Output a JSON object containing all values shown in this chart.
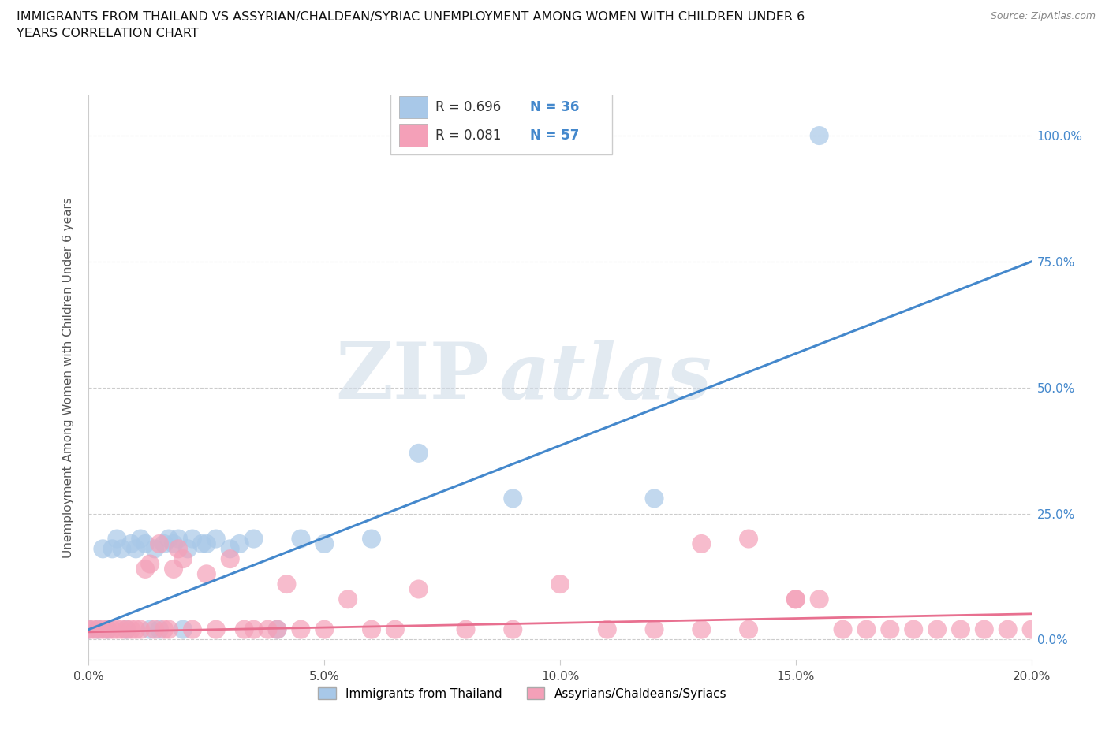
{
  "title": "IMMIGRANTS FROM THAILAND VS ASSYRIAN/CHALDEAN/SYRIAC UNEMPLOYMENT AMONG WOMEN WITH CHILDREN UNDER 6\nYEARS CORRELATION CHART",
  "source": "Source: ZipAtlas.com",
  "ylabel": "Unemployment Among Women with Children Under 6 years",
  "xlabel_ticks": [
    "0.0%",
    "5.0%",
    "10.0%",
    "15.0%",
    "20.0%"
  ],
  "ylabel_ticks_right": [
    "100.0%",
    "75.0%",
    "50.0%",
    "25.0%",
    "0.0%"
  ],
  "ylabel_ticks_vals": [
    1.0,
    0.75,
    0.5,
    0.25,
    0.0
  ],
  "xlim": [
    0.0,
    0.2
  ],
  "ylim": [
    -0.04,
    1.08
  ],
  "watermark_zip": "ZIP",
  "watermark_atlas": "atlas",
  "legend_R1": "R = 0.696",
  "legend_N1": "N = 36",
  "legend_R2": "R = 0.081",
  "legend_N2": "N = 57",
  "color_thailand": "#a8c8e8",
  "color_assyrian": "#f4a0b8",
  "color_line_blue": "#4488cc",
  "color_line_pink": "#e87090",
  "color_tick_blue": "#4488cc",
  "scatter_thailand_x": [
    0.0,
    0.002,
    0.003,
    0.004,
    0.005,
    0.006,
    0.007,
    0.008,
    0.009,
    0.01,
    0.011,
    0.012,
    0.013,
    0.014,
    0.015,
    0.016,
    0.017,
    0.018,
    0.019,
    0.02,
    0.021,
    0.022,
    0.024,
    0.025,
    0.027,
    0.03,
    0.032,
    0.035,
    0.04,
    0.045,
    0.05,
    0.06,
    0.07,
    0.09,
    0.12,
    0.155
  ],
  "scatter_thailand_y": [
    0.02,
    0.02,
    0.18,
    0.02,
    0.18,
    0.2,
    0.18,
    0.02,
    0.19,
    0.18,
    0.2,
    0.19,
    0.02,
    0.18,
    0.02,
    0.19,
    0.2,
    0.19,
    0.2,
    0.02,
    0.18,
    0.2,
    0.19,
    0.19,
    0.2,
    0.18,
    0.19,
    0.2,
    0.02,
    0.2,
    0.19,
    0.2,
    0.37,
    0.28,
    0.28,
    1.0
  ],
  "scatter_assyrian_x": [
    0.0,
    0.001,
    0.002,
    0.003,
    0.004,
    0.005,
    0.006,
    0.007,
    0.008,
    0.009,
    0.01,
    0.011,
    0.012,
    0.013,
    0.014,
    0.015,
    0.016,
    0.017,
    0.018,
    0.019,
    0.02,
    0.022,
    0.025,
    0.027,
    0.03,
    0.033,
    0.035,
    0.038,
    0.04,
    0.042,
    0.045,
    0.05,
    0.055,
    0.06,
    0.065,
    0.07,
    0.08,
    0.09,
    0.1,
    0.11,
    0.12,
    0.13,
    0.14,
    0.15,
    0.155,
    0.16,
    0.165,
    0.17,
    0.175,
    0.18,
    0.185,
    0.19,
    0.195,
    0.2,
    0.13,
    0.14,
    0.15
  ],
  "scatter_assyrian_y": [
    0.02,
    0.02,
    0.02,
    0.02,
    0.02,
    0.02,
    0.02,
    0.02,
    0.02,
    0.02,
    0.02,
    0.02,
    0.14,
    0.15,
    0.02,
    0.19,
    0.02,
    0.02,
    0.14,
    0.18,
    0.16,
    0.02,
    0.13,
    0.02,
    0.16,
    0.02,
    0.02,
    0.02,
    0.02,
    0.11,
    0.02,
    0.02,
    0.08,
    0.02,
    0.02,
    0.1,
    0.02,
    0.02,
    0.11,
    0.02,
    0.02,
    0.02,
    0.02,
    0.08,
    0.08,
    0.02,
    0.02,
    0.02,
    0.02,
    0.02,
    0.02,
    0.02,
    0.02,
    0.02,
    0.19,
    0.2,
    0.08
  ],
  "grid_color": "#cccccc",
  "background_color": "#ffffff",
  "label_legend1": "Immigrants from Thailand",
  "label_legend2": "Assyrians/Chaldeans/Syriacs",
  "line_intercept_blue": 0.02,
  "line_slope_blue": 3.65,
  "line_intercept_pink": 0.015,
  "line_slope_pink": 0.18
}
